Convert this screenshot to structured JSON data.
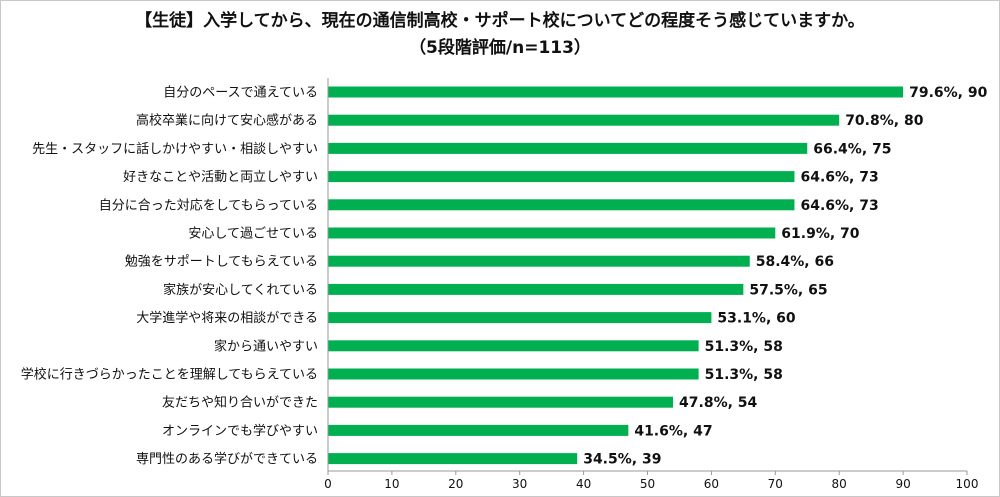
{
  "chart_data": {
    "type": "bar",
    "orientation": "horizontal",
    "title": "【生徒】入学してから、現在の通信制高校・サポート校についてどの程度そう感じていますか。",
    "subtitle": "（5段階評価/n=113）",
    "xlim": [
      0,
      100
    ],
    "xticks": [
      0,
      10,
      20,
      30,
      40,
      50,
      60,
      70,
      80,
      90,
      100
    ],
    "grid": false,
    "bar_color": "#00b050",
    "categories": [
      "自分のペースで通えている",
      "高校卒業に向けて安心感がある",
      "先生・スタッフに話しかけやすい・相談しやすい",
      "好きなことや活動と両立しやすい",
      "自分に合った対応をしてもらっている",
      "安心して過ごせている",
      "勉強をサポートしてもらえている",
      "家族が安心してくれている",
      "大学進学や将来の相談ができる",
      "家から通いやすい",
      "学校に行きづらかったことを理解してもらえている",
      "友だちや知り合いができた",
      "オンラインでも学びやすい",
      "専門性のある学びができている"
    ],
    "values": [
      90,
      80,
      75,
      73,
      73,
      70,
      66,
      65,
      60,
      58,
      58,
      54,
      47,
      39
    ],
    "data_labels": [
      "79.6%, 90",
      "70.8%, 80",
      "66.4%, 75",
      "64.6%, 73",
      "64.6%, 73",
      "61.9%, 70",
      "58.4%, 66",
      "57.5%, 65",
      "53.1%, 60",
      "51.3%, 58",
      "51.3%, 58",
      "47.8%, 54",
      "41.6%, 47",
      "34.5%, 39"
    ]
  }
}
